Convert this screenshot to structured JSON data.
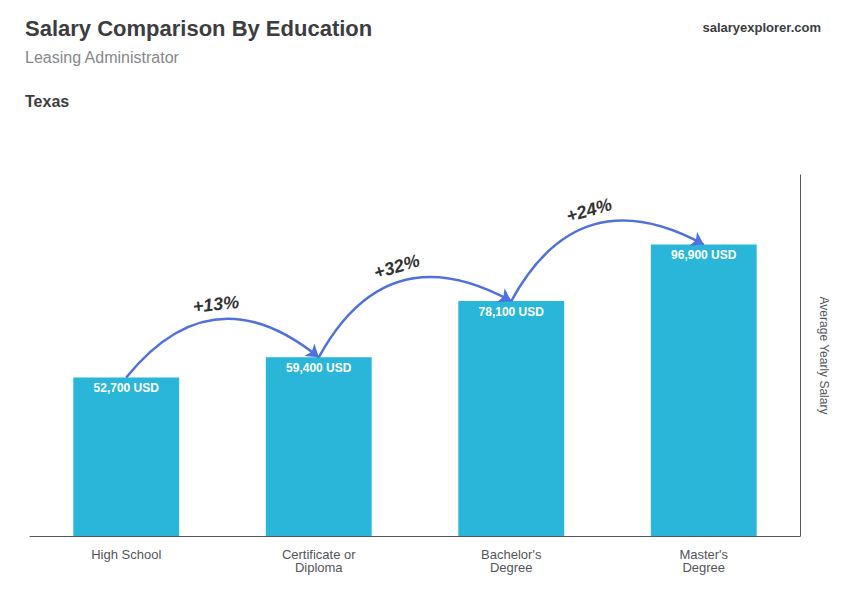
{
  "chart_data": {
    "type": "bar",
    "title": "Salary Comparison By Education",
    "subtitle": "Leasing Administrator",
    "annotations": [
      "Texas",
      "salaryexplorer.com",
      "+13%",
      "+32%",
      "+24%"
    ],
    "ylabel": "Average Yearly Salary",
    "categories": [
      "High School",
      "Certificate or\nDiploma",
      "Bachelor's\nDegree",
      "Master's\nDegree"
    ],
    "values": [
      52700,
      59400,
      78100,
      96900
    ],
    "value_labels": [
      "52,700 USD",
      "59,400 USD",
      "78,100 USD",
      "96,900 USD"
    ],
    "color": "#29b6d8",
    "ylim": [
      0,
      120000
    ],
    "grid": false,
    "data_labels": true,
    "tick_labels": "x"
  }
}
